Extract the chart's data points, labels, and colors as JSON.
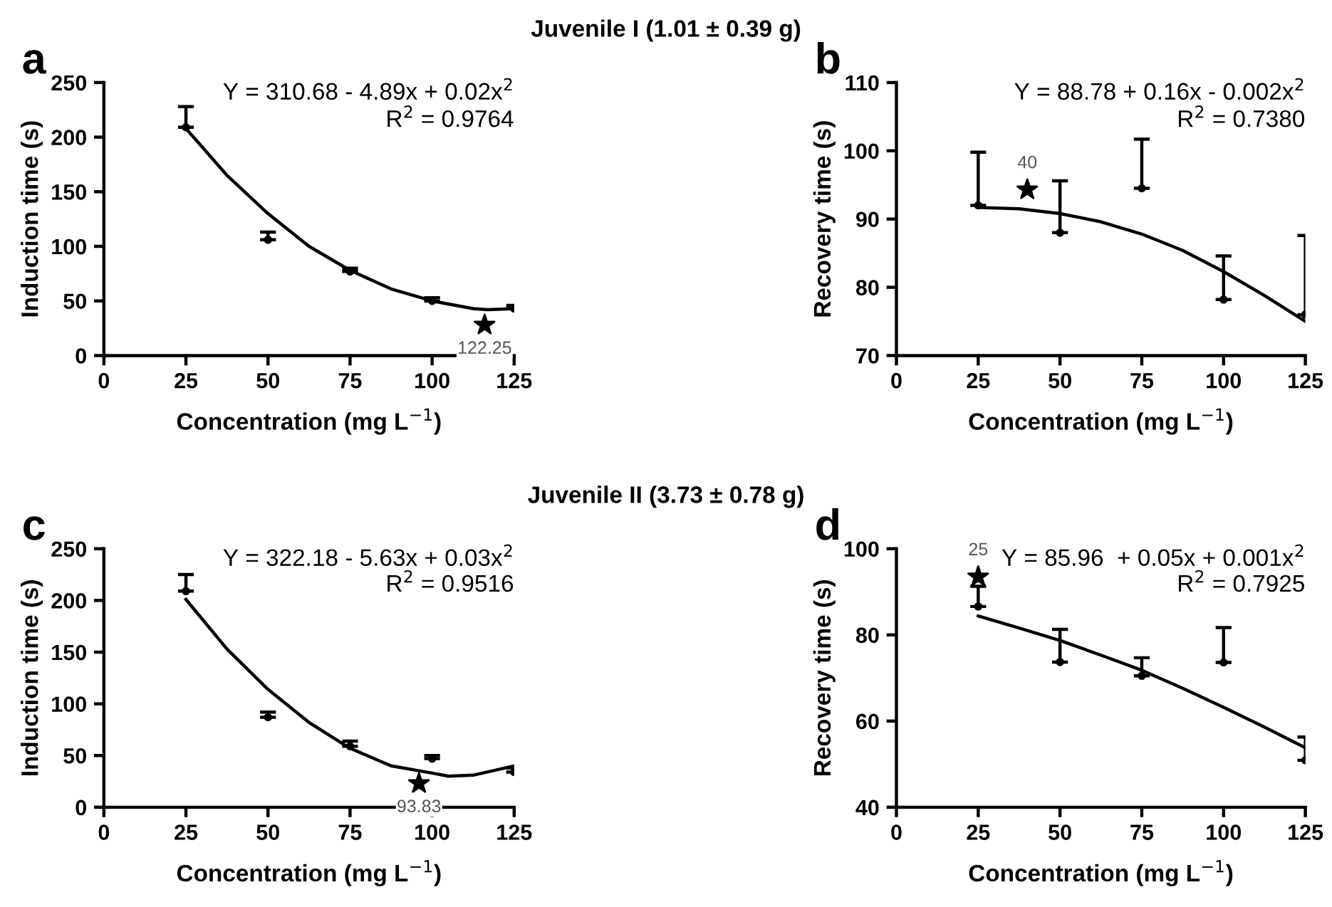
{
  "chart_data": [
    {
      "type": "scatter",
      "title": "Juvenile I (1.01 ± 0.39 g)",
      "xlabel": "Concentration (mg L$^{−1}$)",
      "ylabel": "Induction time (s)",
      "annotations": [
        "a",
        "Y = 310.68 - 4.89x + 0.02x$^{2}$",
        "R$^{2}$ = 0.9764",
        {
          "text": "122.25",
          "x": 116,
          "y": 28
        }
      ],
      "x": [
        25,
        50,
        75,
        100,
        125
      ],
      "xlim": [
        0,
        125
      ],
      "xticks": [
        0,
        25,
        50,
        75,
        100,
        125
      ],
      "ylim": [
        0,
        250
      ],
      "yticks": [
        0,
        50,
        100,
        150,
        200,
        250
      ],
      "series": [
        {
          "type": "scatter",
          "color": "#000000",
          "marker": "circle",
          "values": [
            209,
            106,
            77,
            50,
            43
          ],
          "errors": [
            [
              209,
              228
            ],
            [
              106,
              113
            ],
            [
              77,
              80
            ],
            [
              50,
              53
            ],
            [
              43,
              46
            ]
          ]
        },
        {
          "type": "line",
          "color": "#000000",
          "x": [
            25,
            37.5,
            50,
            62.5,
            75,
            87.5,
            100,
            112.5,
            117,
            125
          ],
          "values": [
            208,
            165,
            130,
            100,
            78,
            61,
            50,
            43,
            42,
            43
          ]
        },
        {
          "color": "#000000",
          "marker": "star",
          "x": [
            116
          ],
          "values": [
            28
          ]
        }
      ]
    },
    {
      "type": "scatter",
      "xlabel": "Concentration (mg L$^{−1}$)",
      "ylabel": "Recovery time (s)",
      "annotations": [
        "b",
        "Y = 88.78 + 0.16x - 0.002x$^{2}$",
        "R$^{2}$ = 0.7380",
        {
          "text": "40",
          "x": 40,
          "y": 94.3
        }
      ],
      "x": [
        25,
        50,
        75,
        100,
        125
      ],
      "xlim": [
        0,
        125
      ],
      "xticks": [
        0,
        25,
        50,
        75,
        100,
        125
      ],
      "ylim": [
        70,
        110
      ],
      "yticks": [
        70,
        80,
        90,
        100,
        110
      ],
      "series": [
        {
          "type": "scatter",
          "color": "#000000",
          "marker": "circle",
          "values": [
            92,
            88,
            94.5,
            78.2,
            76
          ],
          "errors": [
            [
              92,
              99.8
            ],
            [
              88,
              95.6
            ],
            [
              94.5,
              101.7
            ],
            [
              78.2,
              84.6
            ],
            [
              76,
              87.6
            ]
          ]
        },
        {
          "type": "line",
          "color": "#000000",
          "x": [
            25,
            37.5,
            50,
            62.5,
            75,
            87.5,
            100,
            112.5,
            125
          ],
          "values": [
            91.7,
            91.5,
            90.8,
            89.6,
            87.8,
            85.4,
            82.3,
            78.8,
            75
          ]
        },
        {
          "color": "#000000",
          "marker": "star",
          "x": [
            40
          ],
          "values": [
            94.3
          ]
        }
      ]
    },
    {
      "type": "scatter",
      "title": "Juvenile II (3.73 ± 0.78 g)",
      "xlabel": "Concentration (mg L$^{−1}$)",
      "ylabel": "Induction time (s)",
      "annotations": [
        "c",
        "Y = 322.18 - 5.63x + 0.03x$^{2}$",
        "R$^{2}$ = 0.9516",
        {
          "text": "93.83",
          "x": 96,
          "y": 23
        }
      ],
      "x": [
        25,
        50,
        75,
        100,
        125
      ],
      "xlim": [
        0,
        125
      ],
      "xticks": [
        0,
        25,
        50,
        75,
        100,
        125
      ],
      "ylim": [
        0,
        250
      ],
      "yticks": [
        0,
        50,
        100,
        150,
        200,
        250
      ],
      "series": [
        {
          "type": "scatter",
          "color": "#000000",
          "marker": "circle",
          "values": [
            209,
            87,
            59,
            47,
            34
          ],
          "errors": [
            [
              209,
              225
            ],
            [
              87,
              92
            ],
            [
              59,
              64
            ],
            [
              47,
              50
            ],
            [
              34,
              38
            ]
          ]
        },
        {
          "type": "line",
          "color": "#000000",
          "x": [
            25,
            37.5,
            50,
            62.5,
            75,
            87.5,
            100,
            105,
            112.5,
            125
          ],
          "values": [
            201,
            153,
            114,
            82,
            57,
            40,
            33,
            30,
            31,
            40
          ]
        },
        {
          "color": "#000000",
          "marker": "star",
          "x": [
            96
          ],
          "values": [
            23
          ]
        }
      ]
    },
    {
      "type": "scatter",
      "xlabel": "Concentration (mg L$^{−1}$)",
      "ylabel": "Recovery time (s)",
      "annotations": [
        "d",
        "Y = 85.96  + 0.05x + 0.001x$^{2}$",
        "R$^{2}$ = 0.7925",
        {
          "text": "25",
          "x": 25,
          "y": 93.5
        }
      ],
      "x": [
        25,
        50,
        75,
        100,
        125
      ],
      "xlim": [
        0,
        125
      ],
      "xticks": [
        0,
        25,
        50,
        75,
        100,
        125
      ],
      "ylim": [
        40,
        100
      ],
      "yticks": [
        40,
        60,
        80,
        100
      ],
      "series": [
        {
          "type": "scatter",
          "color": "#000000",
          "marker": "circle",
          "values": [
            86.6,
            73.7,
            70.5,
            73.6,
            50.9
          ],
          "errors": [
            [
              86.6,
              91.3
            ],
            [
              73.7,
              81.3
            ],
            [
              70.5,
              74.7
            ],
            [
              73.6,
              81.7
            ],
            [
              50.9,
              56.3
            ]
          ]
        },
        {
          "type": "line",
          "color": "#000000",
          "x": [
            25,
            37.5,
            50,
            62.5,
            75,
            87.5,
            100,
            112.5,
            125
          ],
          "values": [
            84.4,
            81.6,
            78.7,
            75.3,
            71.8,
            67.6,
            63.2,
            58.6,
            53.8
          ]
        },
        {
          "color": "#000000",
          "marker": "star",
          "x": [
            25
          ],
          "values": [
            93.5
          ]
        }
      ]
    }
  ]
}
